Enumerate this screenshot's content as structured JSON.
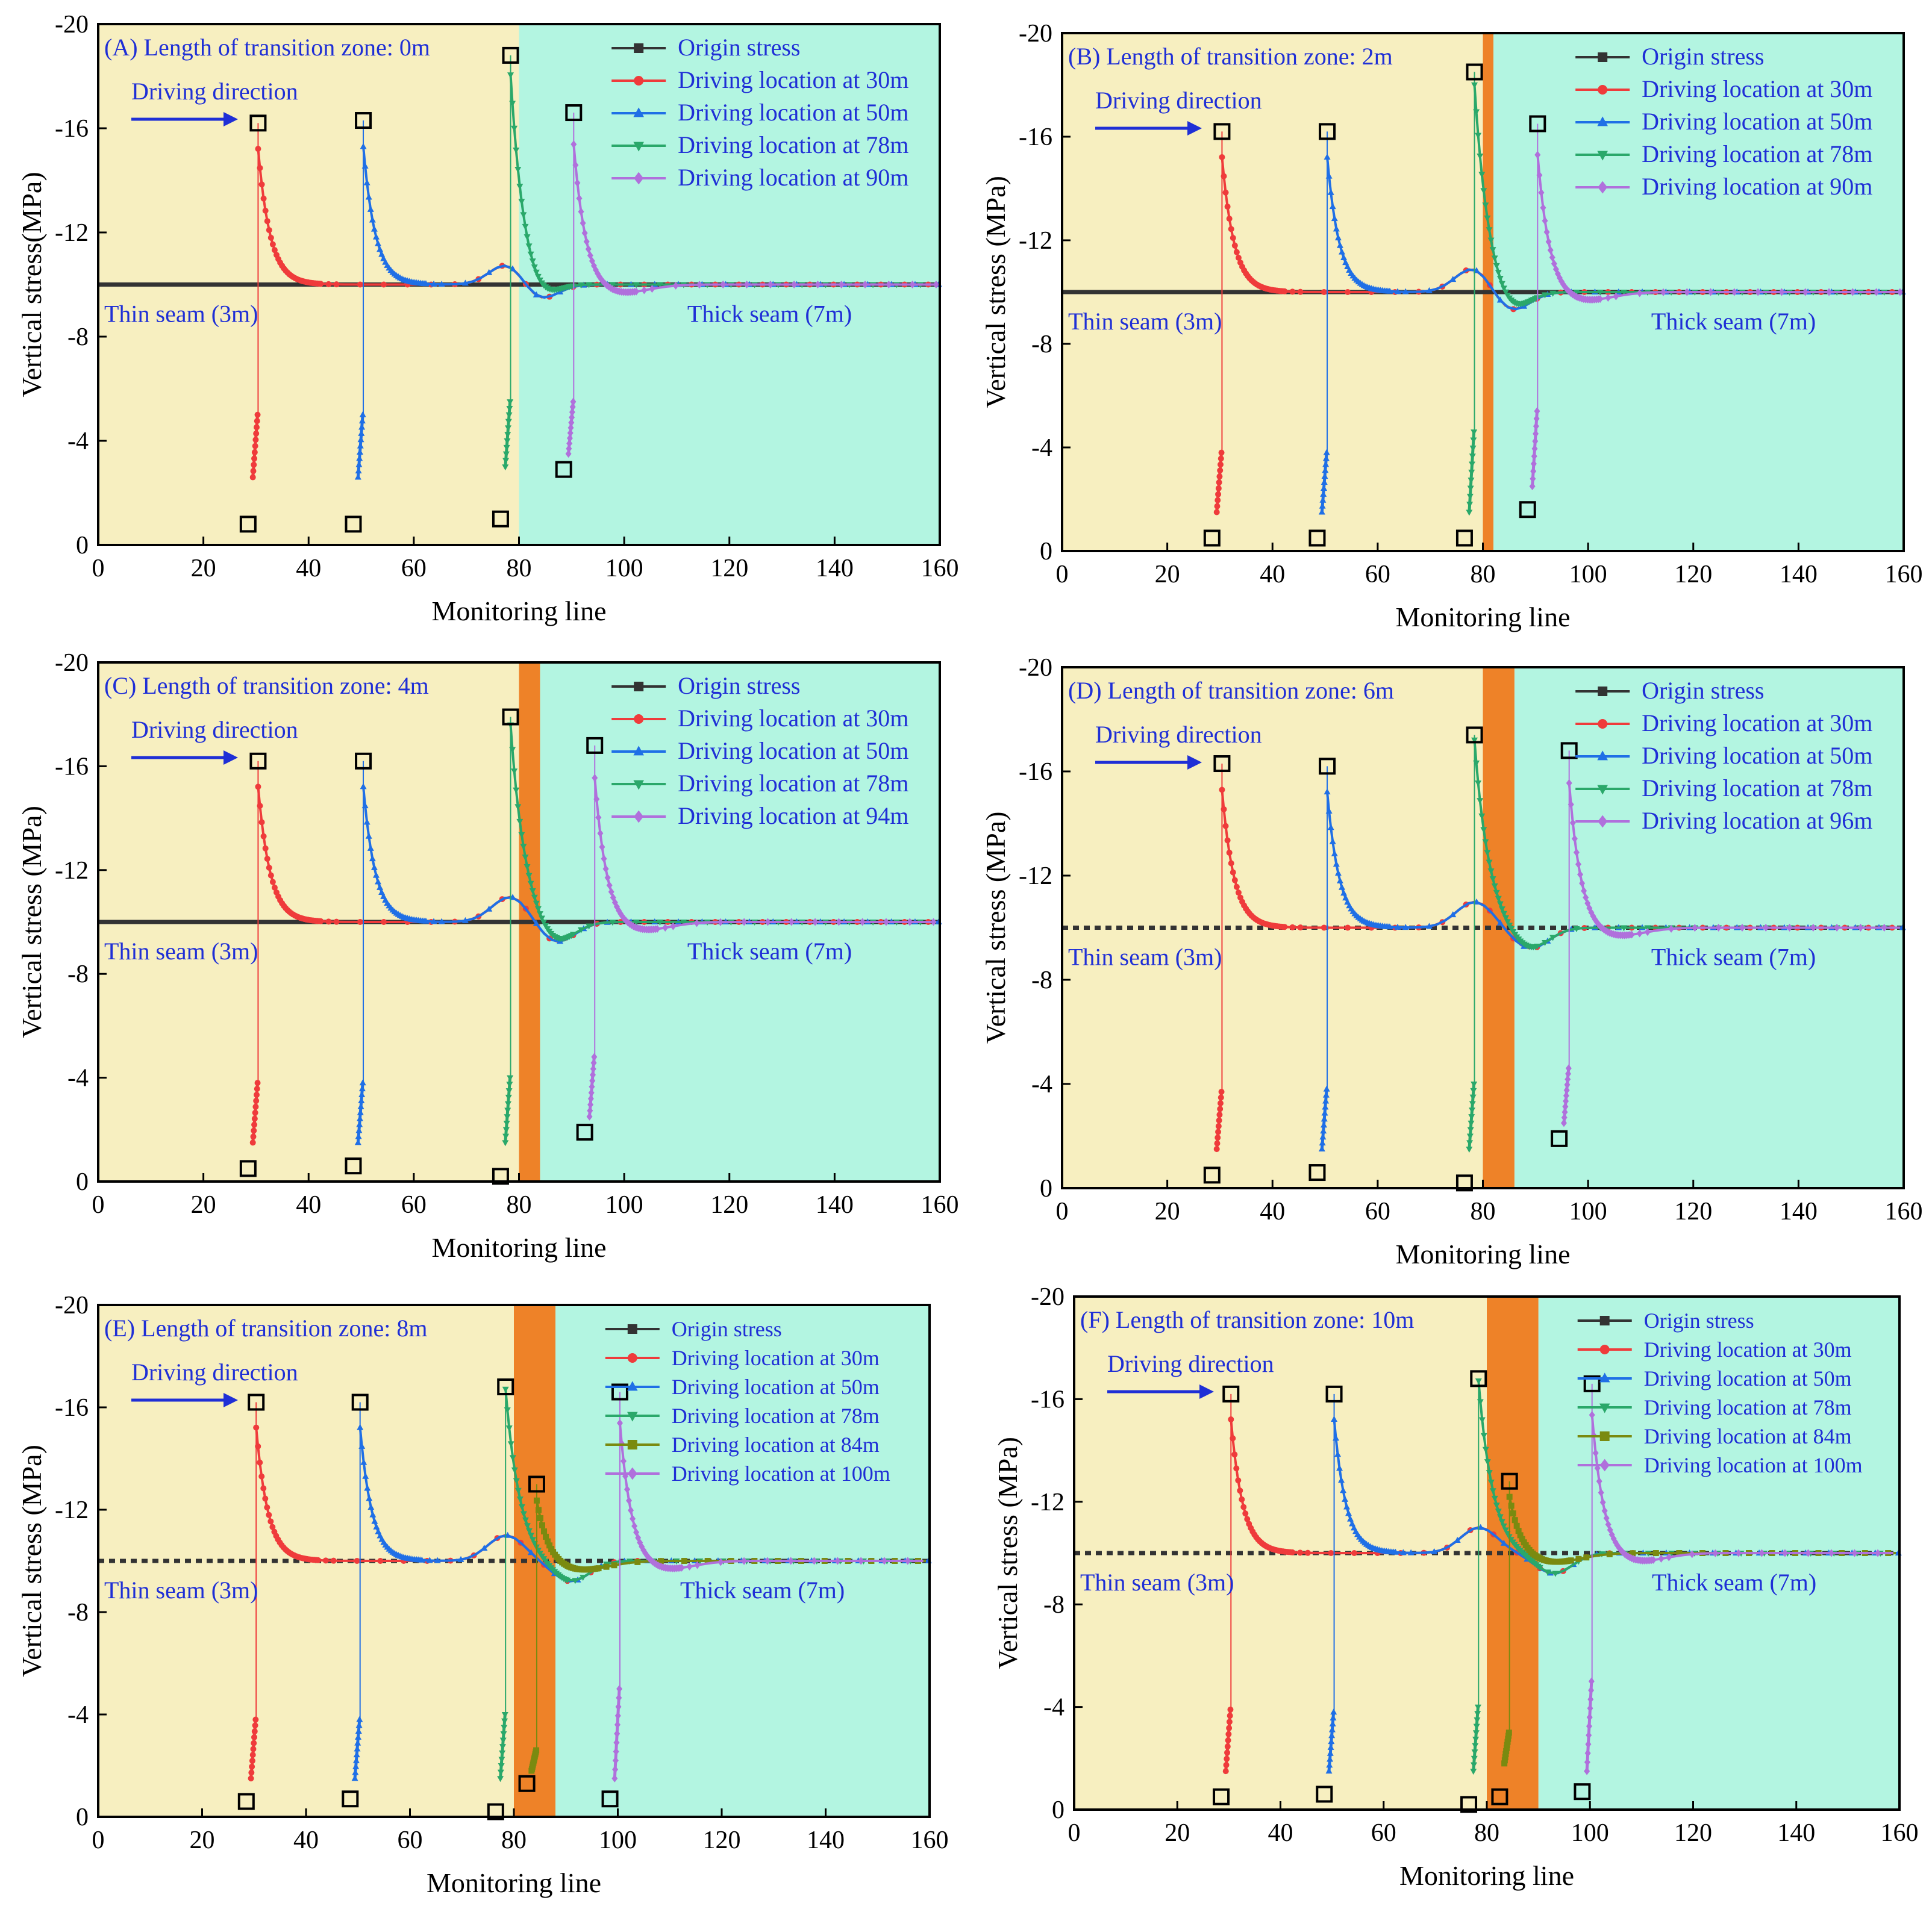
{
  "figure": {
    "colors": {
      "thin_zone": "#f7efc0",
      "thick_zone": "#b3f5e1",
      "transition_zone": "#ee8228",
      "text_blue": "#1f2fd6",
      "origin": "#333333",
      "d30": "#ef3b3b",
      "d50": "#1f6fe6",
      "d78": "#2aa86a",
      "d84": "#7a8a10",
      "dlast": "#b070dc",
      "axis": "#000000"
    }
  },
  "chart_data": [
    {
      "id": "A",
      "type": "line",
      "title": "(A) Length of transition zone: 0m",
      "xlabel": "Monitoring line",
      "ylabel": "Vertical stress(MPa)",
      "xlim": [
        0,
        160
      ],
      "ylim": [
        0,
        -20
      ],
      "xticks": [
        "0",
        "20",
        "40",
        "60",
        "80",
        "100",
        "120",
        "140",
        "160"
      ],
      "yticks": [
        "-20",
        "-16",
        "-12",
        "-8",
        "-4",
        "0"
      ],
      "transition_zone": [
        80,
        80
      ],
      "driving_direction": "Driving direction",
      "thin_label": "Thin seam (3m)",
      "thick_label": "Thick seam (7m)",
      "origin_dashed": false,
      "series": [
        {
          "name": "Origin stress",
          "key": "origin"
        },
        {
          "name": "Driving location at 30m",
          "key": "d30",
          "x": 30,
          "peak": -16.2,
          "low": -0.8,
          "retreat_top": -5.0,
          "retreat_bot": -2.6
        },
        {
          "name": "Driving location at 50m",
          "key": "d50",
          "x": 50,
          "peak": -16.3,
          "low": -0.8,
          "retreat_top": -5.0,
          "retreat_bot": -2.6
        },
        {
          "name": "Driving location at 78m",
          "key": "d78",
          "x": 78,
          "peak": -18.8,
          "low": -1.0,
          "retreat_top": -5.5,
          "retreat_bot": -3.0
        },
        {
          "name": "Driving location at 90m",
          "key": "dlast",
          "x": 90,
          "peak": -16.6,
          "low": -2.9,
          "retreat_top": -5.5,
          "retreat_bot": -3.5
        }
      ]
    },
    {
      "id": "B",
      "type": "line",
      "title": "(B) Length of transition zone: 2m",
      "xlabel": "Monitoring line",
      "ylabel": "Vertical stress (MPa)",
      "xlim": [
        0,
        160
      ],
      "ylim": [
        0,
        -20
      ],
      "xticks": [
        "0",
        "20",
        "40",
        "60",
        "80",
        "100",
        "120",
        "140",
        "160"
      ],
      "yticks": [
        "-20",
        "-16",
        "-12",
        "-8",
        "-4",
        "0"
      ],
      "transition_zone": [
        80,
        82
      ],
      "driving_direction": "Driving direction",
      "thin_label": "Thin seam (3m)",
      "thick_label": "Thick seam (7m)",
      "origin_dashed": false,
      "series": [
        {
          "name": "Origin stress",
          "key": "origin"
        },
        {
          "name": "Driving location at 30m",
          "key": "d30",
          "x": 30,
          "peak": -16.2,
          "low": -0.5,
          "retreat_top": -3.8,
          "retreat_bot": -1.5
        },
        {
          "name": "Driving location at 50m",
          "key": "d50",
          "x": 50,
          "peak": -16.2,
          "low": -0.5,
          "retreat_top": -3.8,
          "retreat_bot": -1.5
        },
        {
          "name": "Driving location at 78m",
          "key": "d78",
          "x": 78,
          "peak": -18.5,
          "low": -0.5,
          "retreat_top": -4.6,
          "retreat_bot": -1.5
        },
        {
          "name": "Driving location at 90m",
          "key": "dlast",
          "x": 90,
          "peak": -16.5,
          "low": -1.6,
          "retreat_top": -5.4,
          "retreat_bot": -2.5
        }
      ]
    },
    {
      "id": "C",
      "type": "line",
      "title": "(C) Length of transition zone: 4m",
      "xlabel": "Monitoring line",
      "ylabel": "Vertical stress (MPa)",
      "xlim": [
        0,
        160
      ],
      "ylim": [
        0,
        -20
      ],
      "xticks": [
        "0",
        "20",
        "40",
        "60",
        "80",
        "100",
        "120",
        "140",
        "160"
      ],
      "yticks": [
        "-20",
        "-16",
        "-12",
        "-8",
        "-4",
        "0"
      ],
      "transition_zone": [
        80,
        84
      ],
      "driving_direction": "Driving direction",
      "thin_label": "Thin seam (3m)",
      "thick_label": "Thick seam (7m)",
      "origin_dashed": false,
      "series": [
        {
          "name": "Origin stress",
          "key": "origin"
        },
        {
          "name": "Driving location at 30m",
          "key": "d30",
          "x": 30,
          "peak": -16.2,
          "low": -0.5,
          "retreat_top": -3.8,
          "retreat_bot": -1.5
        },
        {
          "name": "Driving location at 50m",
          "key": "d50",
          "x": 50,
          "peak": -16.2,
          "low": -0.6,
          "retreat_top": -3.8,
          "retreat_bot": -1.5
        },
        {
          "name": "Driving location at 78m",
          "key": "d78",
          "x": 78,
          "peak": -17.9,
          "low": -0.2,
          "retreat_top": -4.0,
          "retreat_bot": -1.5
        },
        {
          "name": "Driving location at 94m",
          "key": "dlast",
          "x": 94,
          "peak": -16.8,
          "low": -1.9,
          "retreat_top": -4.8,
          "retreat_bot": -2.5
        }
      ]
    },
    {
      "id": "D",
      "type": "line",
      "title": "(D) Length of transition zone: 6m",
      "xlabel": "Monitoring line",
      "ylabel": "Vertical stress (MPa)",
      "xlim": [
        0,
        160
      ],
      "ylim": [
        0,
        -20
      ],
      "xticks": [
        "0",
        "20",
        "40",
        "60",
        "80",
        "100",
        "120",
        "140",
        "160"
      ],
      "yticks": [
        "-20",
        "-16",
        "-12",
        "-8",
        "-4",
        "0"
      ],
      "transition_zone": [
        80,
        86
      ],
      "driving_direction": "Driving direction",
      "thin_label": "Thin seam (3m)",
      "thick_label": "Thick seam (7m)",
      "origin_dashed": true,
      "series": [
        {
          "name": "Origin stress",
          "key": "origin"
        },
        {
          "name": "Driving location at 30m",
          "key": "d30",
          "x": 30,
          "peak": -16.3,
          "low": -0.5,
          "retreat_top": -3.7,
          "retreat_bot": -1.5
        },
        {
          "name": "Driving location at 50m",
          "key": "d50",
          "x": 50,
          "peak": -16.2,
          "low": -0.6,
          "retreat_top": -3.8,
          "retreat_bot": -1.5
        },
        {
          "name": "Driving location at 78m",
          "key": "d78",
          "x": 78,
          "peak": -17.4,
          "low": -0.2,
          "retreat_top": -4.0,
          "retreat_bot": -1.5
        },
        {
          "name": "Driving location at 96m",
          "key": "dlast",
          "x": 96,
          "peak": -16.8,
          "low": -1.9,
          "retreat_top": -4.6,
          "retreat_bot": -2.5
        }
      ]
    },
    {
      "id": "E",
      "type": "line",
      "title": "(E) Length of transition zone: 8m",
      "xlabel": "Monitoring line",
      "ylabel": "Vertical stress (MPa)",
      "xlim": [
        0,
        160
      ],
      "ylim": [
        0,
        -20
      ],
      "xticks": [
        "0",
        "20",
        "40",
        "60",
        "80",
        "100",
        "120",
        "140",
        "160"
      ],
      "yticks": [
        "-20",
        "-16",
        "-12",
        "-8",
        "-4",
        "0"
      ],
      "transition_zone": [
        80,
        88
      ],
      "driving_direction": "Driving direction",
      "thin_label": "Thin seam (3m)",
      "thick_label": "Thick seam (7m)",
      "origin_dashed": true,
      "series": [
        {
          "name": "Origin stress",
          "key": "origin"
        },
        {
          "name": "Driving location at 30m",
          "key": "d30",
          "x": 30,
          "peak": -16.2,
          "low": -0.6,
          "retreat_top": -3.8,
          "retreat_bot": -1.5
        },
        {
          "name": "Driving location at 50m",
          "key": "d50",
          "x": 50,
          "peak": -16.2,
          "low": -0.7,
          "retreat_top": -3.8,
          "retreat_bot": -1.5
        },
        {
          "name": "Driving location at 78m",
          "key": "d78",
          "x": 78,
          "peak": -16.8,
          "low": -0.2,
          "retreat_top": -4.0,
          "retreat_bot": -1.5
        },
        {
          "name": "Driving location at 84m",
          "key": "d84",
          "x": 84,
          "peak": -13.0,
          "low": -1.3,
          "retreat_top": -2.6,
          "retreat_bot": -1.8
        },
        {
          "name": "Driving location at 100m",
          "key": "dlast",
          "x": 100,
          "peak": -16.6,
          "low": -0.7,
          "retreat_top": -5.0,
          "retreat_bot": -1.5
        }
      ]
    },
    {
      "id": "F",
      "type": "line",
      "title": "(F) Length of transition zone: 10m",
      "xlabel": "Monitoring line",
      "ylabel": "Vertical stress (MPa)",
      "xlim": [
        0,
        160
      ],
      "ylim": [
        0,
        -20
      ],
      "xticks": [
        "0",
        "20",
        "40",
        "60",
        "80",
        "100",
        "120",
        "140",
        "160"
      ],
      "yticks": [
        "-20",
        "-16",
        "-12",
        "-8",
        "-4",
        "0"
      ],
      "transition_zone": [
        80,
        90
      ],
      "driving_direction": "Driving direction",
      "thin_label": "Thin seam (3m)",
      "thick_label": "Thick seam (7m)",
      "origin_dashed": true,
      "series": [
        {
          "name": "Origin stress",
          "key": "origin"
        },
        {
          "name": "Driving location at 30m",
          "key": "d30",
          "x": 30,
          "peak": -16.2,
          "low": -0.5,
          "retreat_top": -3.9,
          "retreat_bot": -1.5
        },
        {
          "name": "Driving location at 50m",
          "key": "d50",
          "x": 50,
          "peak": -16.2,
          "low": -0.6,
          "retreat_top": -3.8,
          "retreat_bot": -1.5
        },
        {
          "name": "Driving location at 78m",
          "key": "d78",
          "x": 78,
          "peak": -16.8,
          "low": -0.2,
          "retreat_top": -4.0,
          "retreat_bot": -1.5
        },
        {
          "name": "Driving location at 84m",
          "key": "d84",
          "x": 84,
          "peak": -12.8,
          "low": -0.5,
          "retreat_top": -3.0,
          "retreat_bot": -1.8
        },
        {
          "name": "Driving location at 100m",
          "key": "dlast",
          "x": 100,
          "peak": -16.6,
          "low": -0.7,
          "retreat_top": -5.0,
          "retreat_bot": -1.5
        }
      ]
    }
  ]
}
